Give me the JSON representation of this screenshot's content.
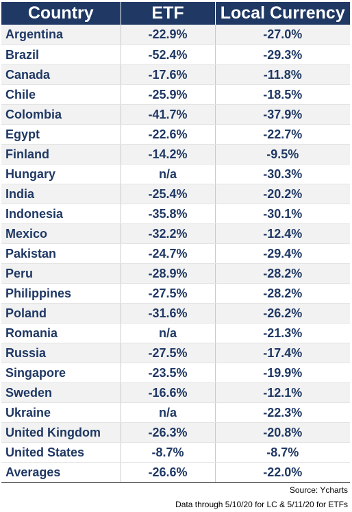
{
  "headers": {
    "country": "Country",
    "etf": "ETF",
    "local": "Local Currency"
  },
  "rows": [
    {
      "country": "Argentina",
      "etf": "-22.9%",
      "local": "-27.0%"
    },
    {
      "country": "Brazil",
      "etf": "-52.4%",
      "local": "-29.3%"
    },
    {
      "country": "Canada",
      "etf": "-17.6%",
      "local": "-11.8%"
    },
    {
      "country": "Chile",
      "etf": "-25.9%",
      "local": "-18.5%"
    },
    {
      "country": "Colombia",
      "etf": "-41.7%",
      "local": "-37.9%"
    },
    {
      "country": "Egypt",
      "etf": "-22.6%",
      "local": "-22.7%"
    },
    {
      "country": "Finland",
      "etf": "-14.2%",
      "local": "-9.5%"
    },
    {
      "country": "Hungary",
      "etf": "n/a",
      "local": "-30.3%"
    },
    {
      "country": "India",
      "etf": "-25.4%",
      "local": "-20.2%"
    },
    {
      "country": "Indonesia",
      "etf": "-35.8%",
      "local": "-30.1%"
    },
    {
      "country": "Mexico",
      "etf": "-32.2%",
      "local": "-12.4%"
    },
    {
      "country": "Pakistan",
      "etf": "-24.7%",
      "local": "-29.4%"
    },
    {
      "country": "Peru",
      "etf": "-28.9%",
      "local": "-28.2%"
    },
    {
      "country": "Philippines",
      "etf": "-27.5%",
      "local": "-28.2%"
    },
    {
      "country": "Poland",
      "etf": "-31.6%",
      "local": "-26.2%"
    },
    {
      "country": "Romania",
      "etf": "n/a",
      "local": "-21.3%"
    },
    {
      "country": "Russia",
      "etf": "-27.5%",
      "local": "-17.4%"
    },
    {
      "country": "Singapore",
      "etf": "-23.5%",
      "local": "-19.9%"
    },
    {
      "country": "Sweden",
      "etf": "-16.6%",
      "local": "-12.1%"
    },
    {
      "country": "Ukraine",
      "etf": "n/a",
      "local": "-22.3%"
    },
    {
      "country": "United Kingdom",
      "etf": "-26.3%",
      "local": "-20.8%"
    },
    {
      "country": "United States",
      "etf": "-8.7%",
      "local": "-8.7%"
    }
  ],
  "averages": {
    "label": "Averages",
    "etf": "-26.6%",
    "local": "-22.0%"
  },
  "source": "Source:  Ycharts",
  "note": "Data through 5/10/20 for LC & 5/11/20 for ETFs",
  "colors": {
    "header_bg": "#1f3864",
    "header_text": "#ffffff",
    "body_text": "#1f3864",
    "stripe": "#f2f2f2"
  }
}
